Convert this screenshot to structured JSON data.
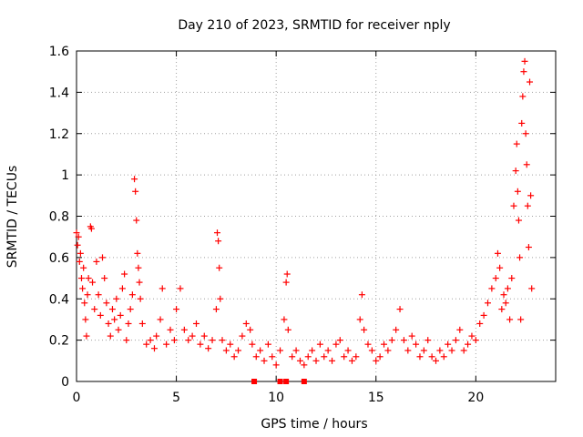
{
  "chart_data": {
    "type": "scatter",
    "title": "Day 210 of 2023, SRMTID for receiver nply",
    "xlabel": "GPS time / hours",
    "ylabel": "SRMTID / TECUs",
    "xlim": [
      0,
      24
    ],
    "ylim": [
      0,
      1.6
    ],
    "x_ticks": [
      0,
      5,
      10,
      15,
      20
    ],
    "x_tick_labels": [
      "0",
      "5",
      "10",
      "15",
      "20"
    ],
    "y_ticks": [
      0,
      0.2,
      0.4,
      0.6,
      0.8,
      1.0,
      1.2,
      1.4,
      1.6
    ],
    "y_tick_labels": [
      "0",
      "0.2",
      "0.4",
      "0.6",
      "0.8",
      "1",
      "1.2",
      "1.4",
      "1.6"
    ],
    "grid": true,
    "marker": "+",
    "color": "#ff0000",
    "series": [
      {
        "name": "SRMTID",
        "points": [
          [
            0.0,
            0.72
          ],
          [
            0.05,
            0.66
          ],
          [
            0.1,
            0.7
          ],
          [
            0.15,
            0.58
          ],
          [
            0.2,
            0.62
          ],
          [
            0.25,
            0.5
          ],
          [
            0.3,
            0.45
          ],
          [
            0.35,
            0.55
          ],
          [
            0.4,
            0.38
          ],
          [
            0.45,
            0.3
          ],
          [
            0.5,
            0.22
          ],
          [
            0.55,
            0.42
          ],
          [
            0.6,
            0.5
          ],
          [
            0.7,
            0.75
          ],
          [
            0.75,
            0.74
          ],
          [
            0.8,
            0.48
          ],
          [
            0.9,
            0.35
          ],
          [
            1.0,
            0.58
          ],
          [
            1.1,
            0.42
          ],
          [
            1.2,
            0.32
          ],
          [
            1.3,
            0.6
          ],
          [
            1.4,
            0.5
          ],
          [
            1.5,
            0.38
          ],
          [
            1.6,
            0.28
          ],
          [
            1.7,
            0.22
          ],
          [
            1.8,
            0.35
          ],
          [
            1.9,
            0.3
          ],
          [
            2.0,
            0.4
          ],
          [
            2.1,
            0.25
          ],
          [
            2.2,
            0.32
          ],
          [
            2.3,
            0.45
          ],
          [
            2.4,
            0.52
          ],
          [
            2.5,
            0.2
          ],
          [
            2.6,
            0.28
          ],
          [
            2.7,
            0.35
          ],
          [
            2.8,
            0.42
          ],
          [
            2.9,
            0.98
          ],
          [
            2.95,
            0.92
          ],
          [
            3.0,
            0.78
          ],
          [
            3.05,
            0.62
          ],
          [
            3.1,
            0.55
          ],
          [
            3.15,
            0.48
          ],
          [
            3.2,
            0.4
          ],
          [
            3.3,
            0.28
          ],
          [
            3.5,
            0.18
          ],
          [
            3.7,
            0.2
          ],
          [
            3.9,
            0.16
          ],
          [
            4.0,
            0.22
          ],
          [
            4.2,
            0.3
          ],
          [
            4.3,
            0.45
          ],
          [
            4.5,
            0.18
          ],
          [
            4.7,
            0.25
          ],
          [
            4.9,
            0.2
          ],
          [
            5.0,
            0.35
          ],
          [
            5.2,
            0.45
          ],
          [
            5.4,
            0.25
          ],
          [
            5.6,
            0.2
          ],
          [
            5.8,
            0.22
          ],
          [
            6.0,
            0.28
          ],
          [
            6.2,
            0.18
          ],
          [
            6.4,
            0.22
          ],
          [
            6.6,
            0.16
          ],
          [
            6.8,
            0.2
          ],
          [
            7.0,
            0.35
          ],
          [
            7.05,
            0.72
          ],
          [
            7.1,
            0.68
          ],
          [
            7.15,
            0.55
          ],
          [
            7.2,
            0.4
          ],
          [
            7.3,
            0.2
          ],
          [
            7.5,
            0.15
          ],
          [
            7.7,
            0.18
          ],
          [
            7.9,
            0.12
          ],
          [
            8.1,
            0.15
          ],
          [
            8.3,
            0.22
          ],
          [
            8.5,
            0.28
          ],
          [
            8.7,
            0.25
          ],
          [
            8.8,
            0.18
          ],
          [
            9.0,
            0.12
          ],
          [
            9.2,
            0.15
          ],
          [
            9.4,
            0.1
          ],
          [
            9.6,
            0.18
          ],
          [
            9.8,
            0.12
          ],
          [
            10.0,
            0.08
          ],
          [
            10.2,
            0.15
          ],
          [
            10.4,
            0.3
          ],
          [
            10.5,
            0.48
          ],
          [
            10.55,
            0.52
          ],
          [
            10.6,
            0.25
          ],
          [
            10.8,
            0.12
          ],
          [
            11.0,
            0.15
          ],
          [
            11.2,
            0.1
          ],
          [
            11.4,
            0.08
          ],
          [
            11.6,
            0.12
          ],
          [
            11.8,
            0.15
          ],
          [
            12.0,
            0.1
          ],
          [
            12.2,
            0.18
          ],
          [
            12.4,
            0.12
          ],
          [
            12.6,
            0.15
          ],
          [
            12.8,
            0.1
          ],
          [
            13.0,
            0.18
          ],
          [
            13.2,
            0.2
          ],
          [
            13.4,
            0.12
          ],
          [
            13.6,
            0.15
          ],
          [
            13.8,
            0.1
          ],
          [
            14.0,
            0.12
          ],
          [
            14.2,
            0.3
          ],
          [
            14.3,
            0.42
          ],
          [
            14.4,
            0.25
          ],
          [
            14.6,
            0.18
          ],
          [
            14.8,
            0.15
          ],
          [
            15.0,
            0.1
          ],
          [
            15.2,
            0.12
          ],
          [
            15.4,
            0.18
          ],
          [
            15.6,
            0.15
          ],
          [
            15.8,
            0.2
          ],
          [
            16.0,
            0.25
          ],
          [
            16.2,
            0.35
          ],
          [
            16.4,
            0.2
          ],
          [
            16.6,
            0.15
          ],
          [
            16.8,
            0.22
          ],
          [
            17.0,
            0.18
          ],
          [
            17.2,
            0.12
          ],
          [
            17.4,
            0.15
          ],
          [
            17.6,
            0.2
          ],
          [
            17.8,
            0.12
          ],
          [
            18.0,
            0.1
          ],
          [
            18.2,
            0.15
          ],
          [
            18.4,
            0.12
          ],
          [
            18.6,
            0.18
          ],
          [
            18.8,
            0.15
          ],
          [
            19.0,
            0.2
          ],
          [
            19.2,
            0.25
          ],
          [
            19.4,
            0.15
          ],
          [
            19.6,
            0.18
          ],
          [
            19.8,
            0.22
          ],
          [
            20.0,
            0.2
          ],
          [
            20.2,
            0.28
          ],
          [
            20.4,
            0.32
          ],
          [
            20.6,
            0.38
          ],
          [
            20.8,
            0.45
          ],
          [
            21.0,
            0.5
          ],
          [
            21.1,
            0.62
          ],
          [
            21.2,
            0.55
          ],
          [
            21.3,
            0.35
          ],
          [
            21.4,
            0.42
          ],
          [
            21.5,
            0.38
          ],
          [
            21.6,
            0.45
          ],
          [
            21.7,
            0.3
          ],
          [
            21.8,
            0.5
          ],
          [
            21.9,
            0.85
          ],
          [
            22.0,
            1.02
          ],
          [
            22.05,
            1.15
          ],
          [
            22.1,
            0.92
          ],
          [
            22.15,
            0.78
          ],
          [
            22.2,
            0.6
          ],
          [
            22.25,
            0.3
          ],
          [
            22.3,
            1.25
          ],
          [
            22.35,
            1.38
          ],
          [
            22.4,
            1.5
          ],
          [
            22.45,
            1.55
          ],
          [
            22.5,
            1.2
          ],
          [
            22.55,
            1.05
          ],
          [
            22.6,
            0.85
          ],
          [
            22.65,
            0.65
          ],
          [
            22.7,
            1.45
          ],
          [
            22.75,
            0.9
          ],
          [
            22.8,
            0.45
          ]
        ]
      }
    ],
    "baseline_markers": [
      8.9,
      10.2,
      10.5,
      11.4
    ]
  }
}
